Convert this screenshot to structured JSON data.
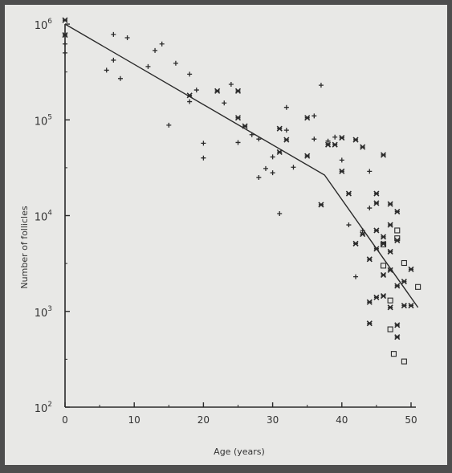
{
  "chart_data": {
    "type": "scatter",
    "title": "",
    "xlabel": "Age (years)",
    "ylabel": "Number of follicles",
    "xlim": [
      0,
      51
    ],
    "ylim": [
      100,
      1200000
    ],
    "y_scale": "log",
    "grid": false,
    "x_ticks": [
      0,
      10,
      20,
      30,
      40,
      50
    ],
    "y_ticks": [
      {
        "value": 100,
        "base": "10",
        "exp": "2"
      },
      {
        "value": 1000,
        "base": "10",
        "exp": "3"
      },
      {
        "value": 10000,
        "base": "10",
        "exp": "4"
      },
      {
        "value": 100000,
        "base": "10",
        "exp": "5"
      },
      {
        "value": 1000000,
        "base": "10",
        "exp": "6"
      }
    ],
    "fit_line": [
      [
        0,
        1000000
      ],
      [
        37.5,
        26500
      ],
      [
        51,
        1100
      ]
    ],
    "series": [
      {
        "marker": "plus",
        "points": [
          [
            0,
            500000
          ],
          [
            0,
            620000
          ],
          [
            6,
            330000
          ],
          [
            7,
            420000
          ],
          [
            7,
            780000
          ],
          [
            8,
            270000
          ],
          [
            9,
            720000
          ],
          [
            12,
            360000
          ],
          [
            13,
            530000
          ],
          [
            14,
            620000
          ],
          [
            15,
            88000
          ],
          [
            16,
            390000
          ],
          [
            18,
            300000
          ],
          [
            18,
            155000
          ],
          [
            19,
            205000
          ],
          [
            20,
            57000
          ],
          [
            20,
            40000
          ],
          [
            23,
            150000
          ],
          [
            24,
            235000
          ],
          [
            25,
            58000
          ],
          [
            27,
            70000
          ],
          [
            28,
            63000
          ],
          [
            29,
            31000
          ],
          [
            28,
            25000
          ],
          [
            30,
            28000
          ],
          [
            32,
            135000
          ],
          [
            33,
            32000
          ],
          [
            36,
            110000
          ],
          [
            37,
            230000
          ],
          [
            38,
            60000
          ],
          [
            39,
            66000
          ],
          [
            41,
            8000
          ],
          [
            42,
            2300
          ],
          [
            43,
            7000
          ],
          [
            44,
            12000
          ],
          [
            40,
            38000
          ],
          [
            44,
            29000
          ],
          [
            36,
            63000
          ],
          [
            30,
            41000
          ],
          [
            31,
            10500
          ],
          [
            32,
            78000
          ]
        ]
      },
      {
        "marker": "cross",
        "points": [
          [
            0,
            1100000
          ],
          [
            0,
            770000
          ],
          [
            18,
            180000
          ],
          [
            22,
            200000
          ],
          [
            25,
            200000
          ],
          [
            25,
            105000
          ],
          [
            26,
            86000
          ],
          [
            31,
            81000
          ],
          [
            31,
            46000
          ],
          [
            32,
            62000
          ],
          [
            35,
            105000
          ],
          [
            35,
            42000
          ],
          [
            37,
            13000
          ],
          [
            38,
            55000
          ],
          [
            39,
            55000
          ],
          [
            40,
            65000
          ],
          [
            40,
            29000
          ],
          [
            41,
            17000
          ],
          [
            42,
            62000
          ],
          [
            42,
            5100
          ],
          [
            43,
            52000
          ],
          [
            43,
            6400
          ],
          [
            44,
            1250
          ],
          [
            44,
            750
          ],
          [
            44,
            3500
          ],
          [
            45,
            13500
          ],
          [
            45,
            7000
          ],
          [
            45,
            17000
          ],
          [
            45,
            1400
          ],
          [
            45,
            4500
          ],
          [
            46,
            43000
          ],
          [
            46,
            2400
          ],
          [
            46,
            6000
          ],
          [
            46,
            5100
          ],
          [
            46,
            1450
          ],
          [
            47,
            13200
          ],
          [
            47,
            8000
          ],
          [
            47,
            4200
          ],
          [
            47,
            2700
          ],
          [
            47,
            1100
          ],
          [
            48,
            11000
          ],
          [
            48,
            5500
          ],
          [
            48,
            1850
          ],
          [
            48,
            720
          ],
          [
            48,
            540
          ],
          [
            49,
            2050
          ],
          [
            49,
            1150
          ],
          [
            50,
            2750
          ],
          [
            50,
            1150
          ]
        ]
      },
      {
        "marker": "square",
        "points": [
          [
            46,
            5000
          ],
          [
            46,
            3000
          ],
          [
            47,
            1300
          ],
          [
            47,
            650
          ],
          [
            47.5,
            360
          ],
          [
            48,
            7000
          ],
          [
            48,
            5800
          ],
          [
            49,
            3200
          ],
          [
            49,
            300
          ],
          [
            51,
            1800
          ]
        ]
      }
    ]
  }
}
